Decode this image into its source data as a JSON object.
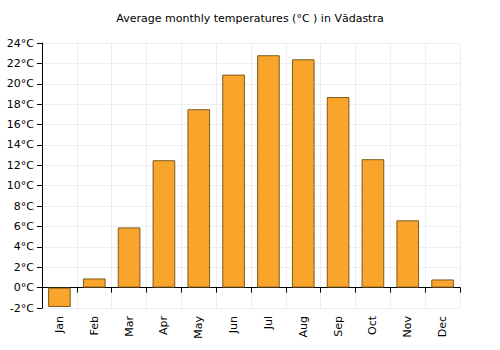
{
  "chart_data": {
    "type": "bar",
    "title": "Average monthly temperatures (°C ) in Vădastra",
    "categories": [
      "Jan",
      "Feb",
      "Mar",
      "Apr",
      "May",
      "Jun",
      "Jul",
      "Aug",
      "Sep",
      "Oct",
      "Nov",
      "Dec"
    ],
    "values": [
      -1.9,
      0.9,
      5.9,
      12.5,
      17.5,
      20.9,
      22.8,
      22.4,
      18.7,
      12.6,
      6.6,
      0.8
    ],
    "color": "#f9a42a",
    "ylim": [
      -2,
      24
    ],
    "yticks": [
      {
        "value": -2,
        "label": "-2°C"
      },
      {
        "value": 0,
        "label": "0°C"
      },
      {
        "value": 2,
        "label": "2°C"
      },
      {
        "value": 4,
        "label": "4°C"
      },
      {
        "value": 6,
        "label": "6°C"
      },
      {
        "value": 8,
        "label": "8°C"
      },
      {
        "value": 10,
        "label": "10°C"
      },
      {
        "value": 12,
        "label": "12°C"
      },
      {
        "value": 14,
        "label": "14°C"
      },
      {
        "value": 16,
        "label": "16°C"
      },
      {
        "value": 18,
        "label": "18°C"
      },
      {
        "value": 20,
        "label": "20°C"
      },
      {
        "value": 22,
        "label": "22°C"
      },
      {
        "value": 24,
        "label": "24°C"
      }
    ],
    "grid": true
  }
}
